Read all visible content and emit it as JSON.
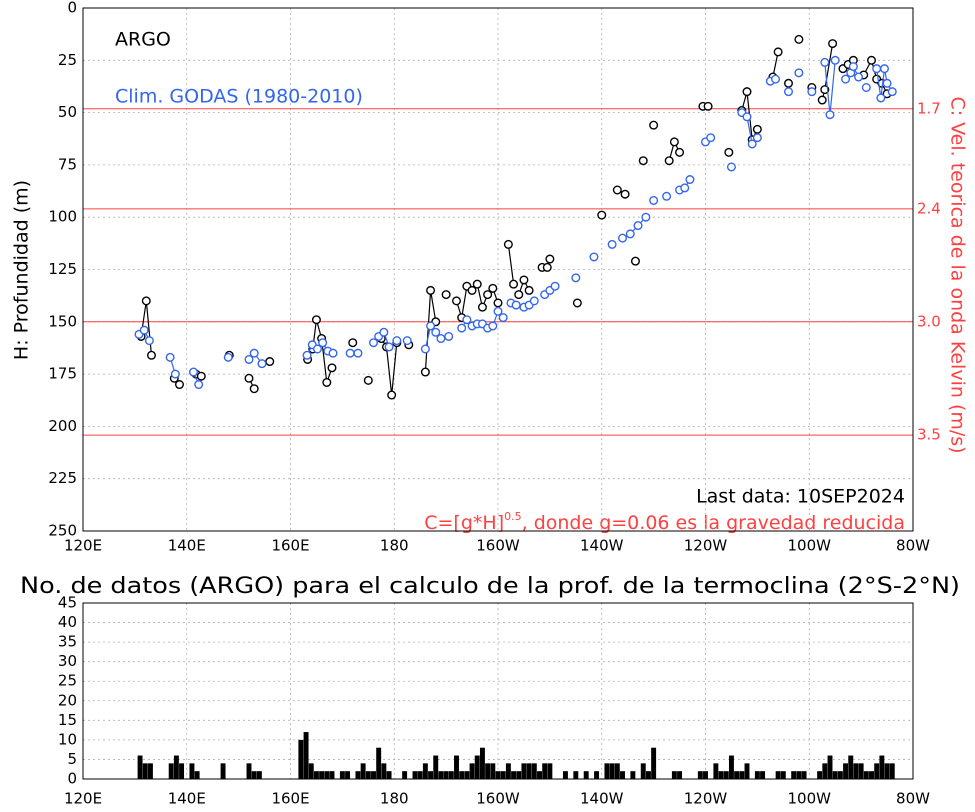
{
  "chart_data": [
    {
      "type": "line",
      "y_label": "H: Profundidad (m)",
      "y2_label": "C: Vel. teorica de la onda Kelvin (m/s)",
      "annotations": [
        "Last data:  10SEP2024",
        "C=[g*H]",
        "0.5",
        ", donde g=0.06 es la gravedad reducida"
      ],
      "annotation_color": "#ff4040",
      "xlim": [
        120,
        280
      ],
      "xticks": [
        {
          "value": 120,
          "label": "120E"
        },
        {
          "value": 140,
          "label": "140E"
        },
        {
          "value": 160,
          "label": "160E"
        },
        180,
        {
          "value": 200,
          "label": "160W"
        },
        {
          "value": 220,
          "label": "140W"
        },
        {
          "value": 240,
          "label": "120W"
        },
        {
          "value": 260,
          "label": "100W"
        },
        {
          "value": 280,
          "label": "80W"
        }
      ],
      "ylim": [
        0,
        250
      ],
      "y_reversed": true,
      "yticks": [
        0,
        25,
        50,
        75,
        100,
        125,
        150,
        175,
        200,
        225,
        250
      ],
      "y2lim": [
        0,
        3.873
      ],
      "y2_scale": "quadratic",
      "y2ticks": [
        1.7,
        2.4,
        {
          "value": 3,
          "label": "3.0"
        },
        3.5
      ],
      "y2_color": "#ff4040",
      "grid": true,
      "legend": "upper left",
      "series": [
        {
          "name": "ARGO",
          "color": "#000000",
          "x": [
            131.2,
            132.2,
            133.2,
            null,
            137.6,
            138.6,
            null,
            141.8,
            142.8,
            null,
            148.2,
            null,
            152,
            153,
            null,
            156,
            null,
            163.3,
            164.3,
            165,
            166,
            167,
            168,
            null,
            172,
            null,
            175,
            null,
            177.5,
            178.5,
            179.5,
            180.5,
            null,
            182.8,
            null,
            186,
            187,
            188,
            null,
            190,
            null,
            192,
            193,
            194,
            195,
            196,
            197,
            198,
            199,
            200,
            null,
            202,
            203,
            null,
            204,
            205,
            206,
            null,
            208.5,
            209.5,
            210,
            null,
            215.3,
            null,
            220,
            null,
            223,
            224.5,
            null,
            226.5,
            null,
            228,
            null,
            230,
            null,
            233,
            234,
            235,
            null,
            239.5,
            240.5,
            null,
            244.5,
            null,
            247,
            248,
            249,
            250,
            null,
            253,
            254,
            null,
            256,
            null,
            258,
            null,
            260.5,
            null,
            262.5,
            263,
            264.5,
            null,
            266.5,
            267.5,
            268.5,
            null,
            270.5,
            272,
            273,
            274,
            275
          ],
          "values": [
            157,
            140,
            166,
            null,
            177,
            180,
            null,
            175,
            176,
            null,
            166,
            null,
            177,
            182,
            null,
            169,
            null,
            168,
            163,
            149,
            158,
            179,
            172,
            null,
            160,
            null,
            178,
            null,
            158,
            162,
            185,
            160,
            null,
            161,
            null,
            174,
            135,
            150,
            null,
            137,
            null,
            140,
            148,
            133,
            135,
            132,
            143,
            137,
            134,
            141,
            null,
            113,
            132,
            null,
            137,
            130,
            135,
            null,
            124,
            124,
            120,
            null,
            141,
            null,
            99,
            null,
            87,
            89,
            null,
            121,
            null,
            73,
            null,
            56,
            null,
            73,
            64,
            69,
            null,
            47,
            47,
            null,
            69,
            null,
            49,
            40,
            63,
            58,
            null,
            33,
            21,
            null,
            36,
            null,
            15,
            null,
            38,
            null,
            44,
            39,
            17,
            null,
            29,
            27,
            25,
            null,
            32,
            25,
            34,
            36,
            41
          ]
        },
        {
          "name": "Clim. GODAS (1980-2010)",
          "color": "#3366ee",
          "x": [
            130.8,
            131.8,
            132.8,
            null,
            136.8,
            137.8,
            null,
            141.3,
            142.3,
            null,
            148,
            null,
            152,
            153,
            154.5,
            null,
            163.2,
            164.2,
            165.2,
            166.2,
            167.2,
            168.2,
            null,
            171.5,
            173,
            null,
            176,
            177,
            178,
            179,
            180.5,
            null,
            182.5,
            null,
            186,
            187,
            188,
            189,
            null,
            190.5,
            null,
            193,
            194,
            195,
            196,
            197,
            198,
            199,
            200,
            201,
            null,
            202.5,
            203.5,
            null,
            205,
            206,
            207,
            null,
            209,
            210,
            211,
            null,
            215,
            null,
            218.5,
            null,
            222,
            null,
            224,
            225.5,
            227,
            228.5,
            null,
            230,
            null,
            232.5,
            null,
            235,
            236,
            237,
            null,
            240,
            241,
            null,
            245,
            null,
            247,
            248,
            249,
            250,
            null,
            252.5,
            253.5,
            null,
            256,
            null,
            258,
            null,
            260.5,
            null,
            263,
            264,
            265,
            null,
            267,
            268,
            268.5,
            269.5,
            null,
            271,
            null,
            273,
            273.8,
            274.5,
            275,
            276
          ],
          "values": [
            156,
            154,
            159,
            null,
            167,
            175,
            null,
            174,
            180,
            null,
            167,
            null,
            168,
            165,
            170,
            null,
            166,
            161,
            163,
            160,
            164,
            165,
            null,
            165,
            165,
            null,
            160,
            157,
            155,
            162,
            159,
            null,
            159,
            null,
            163,
            152,
            155,
            158,
            null,
            157,
            null,
            153,
            149,
            152,
            151,
            151,
            153,
            152,
            145,
            148,
            null,
            141,
            142,
            null,
            143,
            142,
            140,
            null,
            137,
            135,
            133,
            null,
            129,
            null,
            119,
            null,
            113,
            null,
            110,
            108,
            104,
            100,
            null,
            92,
            null,
            90,
            null,
            87,
            86,
            82,
            null,
            64,
            62,
            null,
            76,
            null,
            50,
            52,
            65,
            62,
            null,
            35,
            34,
            null,
            40,
            null,
            31,
            null,
            40,
            null,
            26,
            51,
            25,
            null,
            34,
            31,
            28,
            33,
            null,
            38,
            null,
            29,
            43,
            29,
            36,
            40
          ]
        }
      ]
    },
    {
      "type": "bar",
      "title": "No. de datos (ARGO) para el calculo de la prof. de la termoclina (2°S-2°N)",
      "color": "#000000",
      "xlim": [
        120,
        280
      ],
      "xticks": [
        {
          "value": 120,
          "label": "120E"
        },
        {
          "value": 140,
          "label": "140E"
        },
        {
          "value": 160,
          "label": "160E"
        },
        180,
        {
          "value": 200,
          "label": "160W"
        },
        {
          "value": 220,
          "label": "140W"
        },
        {
          "value": 240,
          "label": "120W"
        },
        {
          "value": 260,
          "label": "100W"
        },
        {
          "value": 280,
          "label": "80W"
        }
      ],
      "ylim": [
        0,
        45
      ],
      "yticks": [
        0,
        5,
        10,
        15,
        20,
        25,
        30,
        35,
        40,
        45
      ],
      "grid": true,
      "x": [
        131,
        132,
        133,
        137,
        138,
        139,
        141,
        142,
        147,
        152,
        153,
        154,
        162,
        163,
        164,
        165,
        166,
        167,
        168,
        170,
        171,
        173,
        174,
        175,
        176,
        177,
        178,
        179,
        182,
        184,
        185,
        186,
        187,
        188,
        189,
        190,
        191,
        192,
        193,
        194,
        195,
        196,
        197,
        198,
        199,
        200,
        201,
        202,
        203,
        204,
        205,
        206,
        207,
        208,
        209,
        210,
        213,
        215,
        217,
        219,
        221,
        222,
        223,
        224,
        226,
        228,
        229,
        230,
        234,
        235,
        239,
        240,
        242,
        243,
        244,
        245,
        246,
        247,
        248,
        250,
        251,
        254,
        255,
        257,
        258,
        259,
        262,
        263,
        264,
        265,
        266,
        267,
        268,
        269,
        270,
        271,
        272,
        273,
        274,
        275,
        276
      ],
      "values": [
        6,
        4,
        4,
        4,
        6,
        4,
        4,
        2,
        4,
        4,
        2,
        2,
        10,
        12,
        4,
        2,
        2,
        2,
        2,
        2,
        2,
        2,
        4,
        2,
        2,
        8,
        4,
        2,
        2,
        2,
        2,
        4,
        2,
        6,
        2,
        2,
        2,
        6,
        2,
        2,
        4,
        6,
        8,
        4,
        4,
        2,
        2,
        4,
        2,
        2,
        4,
        4,
        4,
        2,
        4,
        4,
        2,
        2,
        2,
        2,
        4,
        4,
        4,
        2,
        2,
        4,
        2,
        8,
        2,
        2,
        2,
        2,
        4,
        2,
        2,
        6,
        2,
        2,
        4,
        2,
        2,
        2,
        2,
        2,
        2,
        2,
        2,
        4,
        6,
        2,
        2,
        4,
        6,
        4,
        4,
        2,
        2,
        4,
        6,
        4,
        4
      ]
    }
  ]
}
